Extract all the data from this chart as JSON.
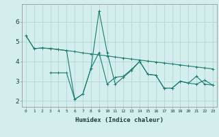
{
  "xlabel": "Humidex (Indice chaleur)",
  "ylabel": "",
  "bg_color": "#d4eeee",
  "grid_color": "#b8dada",
  "line_color": "#1a7a6e",
  "xlim": [
    -0.5,
    23.5
  ],
  "ylim": [
    1.7,
    6.9
  ],
  "yticks": [
    2,
    3,
    4,
    5,
    6
  ],
  "xticks": [
    0,
    1,
    2,
    3,
    4,
    5,
    6,
    7,
    8,
    9,
    10,
    11,
    12,
    13,
    14,
    15,
    16,
    17,
    18,
    19,
    20,
    21,
    22,
    23
  ],
  "line1_x": [
    0,
    1,
    2,
    3,
    4,
    5,
    6,
    7,
    8,
    9,
    10,
    11,
    12,
    13,
    14,
    15,
    16,
    17,
    18,
    19,
    20,
    21,
    22,
    23
  ],
  "line1_y": [
    5.3,
    4.65,
    4.68,
    4.65,
    4.6,
    4.55,
    4.5,
    4.43,
    4.38,
    4.33,
    4.28,
    4.22,
    4.17,
    4.12,
    4.07,
    4.02,
    3.97,
    3.92,
    3.87,
    3.82,
    3.77,
    3.72,
    3.67,
    3.62
  ],
  "line2_x": [
    0,
    1,
    2,
    3,
    4,
    5,
    6,
    7,
    8,
    9,
    10,
    11,
    12,
    13,
    14,
    15,
    16,
    17,
    18,
    19,
    20,
    21,
    22,
    23
  ],
  "line2_y": [
    5.3,
    4.65,
    4.68,
    4.65,
    4.6,
    4.55,
    2.08,
    2.35,
    3.65,
    6.55,
    4.45,
    2.85,
    3.2,
    3.55,
    4.0,
    3.35,
    3.3,
    2.65,
    2.65,
    3.0,
    2.9,
    2.85,
    3.05,
    2.8
  ],
  "line3_x": [
    3,
    4,
    5,
    6,
    7,
    8,
    9,
    10,
    11,
    12,
    13,
    14,
    15,
    16,
    17,
    18,
    19,
    20,
    21,
    22,
    23
  ],
  "line3_y": [
    3.42,
    3.42,
    3.42,
    2.08,
    2.35,
    3.65,
    4.45,
    2.85,
    3.2,
    3.25,
    3.6,
    4.0,
    3.35,
    3.3,
    2.65,
    2.65,
    3.0,
    2.9,
    3.25,
    2.85,
    2.8
  ]
}
